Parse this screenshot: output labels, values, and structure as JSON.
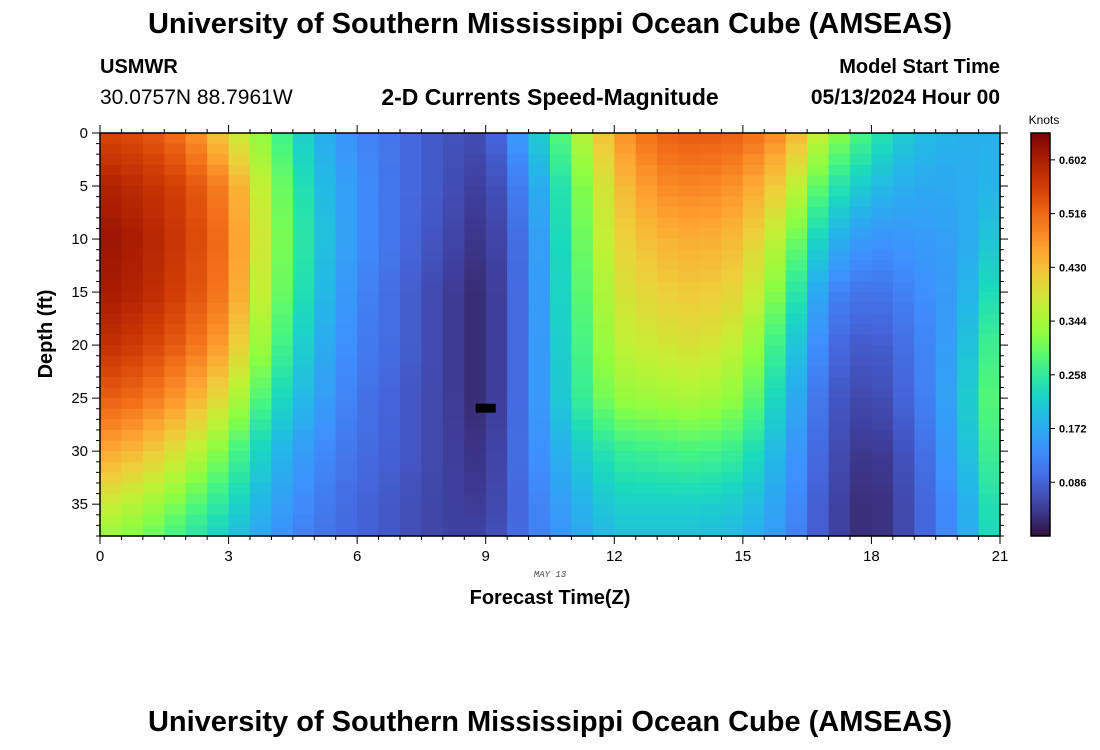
{
  "header": {
    "title": "University of Southern Mississippi Ocean Cube (AMSEAS)",
    "station": "USMWR",
    "coords": "30.0757N  88.7961W",
    "plot_title": "2-D Currents Speed-Magnitude",
    "model_start_label": "Model Start Time",
    "model_start_value": "05/13/2024 Hour 00"
  },
  "footer": {
    "title": "University of Southern Mississippi Ocean Cube (AMSEAS)"
  },
  "chart_data": {
    "type": "heatmap",
    "title": "2-D Currents Speed-Magnitude",
    "xlabel": "Forecast Time(Z)",
    "ylabel": "Depth (ft)",
    "date_label": "MAY 13",
    "xlim": [
      0,
      21
    ],
    "ylim": [
      0,
      38
    ],
    "x_ticks": [
      0,
      3,
      6,
      9,
      12,
      15,
      18,
      21
    ],
    "y_ticks": [
      0,
      5,
      10,
      15,
      20,
      25,
      30,
      35
    ],
    "colorbar": {
      "label": "Knots",
      "min": 0.0,
      "max": 0.645,
      "ticks": [
        "0.602",
        "0.516",
        "0.430",
        "0.344",
        "0.258",
        "0.172",
        "0.086"
      ]
    },
    "depth_rows": [
      0,
      5,
      10,
      15,
      20,
      25,
      30,
      35,
      38
    ],
    "series": [
      {
        "time": 0,
        "speeds": [
          0.55,
          0.6,
          0.62,
          0.61,
          0.58,
          0.53,
          0.46,
          0.38,
          0.34
        ]
      },
      {
        "time": 1,
        "speeds": [
          0.54,
          0.58,
          0.6,
          0.59,
          0.56,
          0.51,
          0.43,
          0.35,
          0.31
        ]
      },
      {
        "time": 2,
        "speeds": [
          0.5,
          0.55,
          0.56,
          0.55,
          0.52,
          0.46,
          0.38,
          0.3,
          0.26
        ]
      },
      {
        "time": 3,
        "speeds": [
          0.4,
          0.48,
          0.5,
          0.49,
          0.45,
          0.38,
          0.3,
          0.24,
          0.21
        ]
      },
      {
        "time": 4,
        "speeds": [
          0.3,
          0.33,
          0.34,
          0.33,
          0.3,
          0.25,
          0.2,
          0.17,
          0.15
        ]
      },
      {
        "time": 5,
        "speeds": [
          0.19,
          0.21,
          0.22,
          0.21,
          0.19,
          0.17,
          0.14,
          0.12,
          0.11
        ]
      },
      {
        "time": 6,
        "speeds": [
          0.13,
          0.14,
          0.14,
          0.13,
          0.12,
          0.11,
          0.1,
          0.09,
          0.09
        ]
      },
      {
        "time": 7,
        "speeds": [
          0.1,
          0.1,
          0.1,
          0.09,
          0.09,
          0.08,
          0.08,
          0.07,
          0.07
        ]
      },
      {
        "time": 8,
        "speeds": [
          0.07,
          0.07,
          0.06,
          0.05,
          0.05,
          0.05,
          0.05,
          0.05,
          0.05
        ]
      },
      {
        "time": 9,
        "speeds": [
          0.06,
          0.04,
          0.03,
          0.02,
          0.02,
          0.02,
          0.03,
          0.04,
          0.05
        ]
      },
      {
        "time": 10,
        "speeds": [
          0.18,
          0.14,
          0.12,
          0.12,
          0.12,
          0.12,
          0.12,
          0.11,
          0.11
        ]
      },
      {
        "time": 11,
        "speeds": [
          0.32,
          0.28,
          0.27,
          0.26,
          0.25,
          0.24,
          0.2,
          0.17,
          0.16
        ]
      },
      {
        "time": 12,
        "speeds": [
          0.46,
          0.42,
          0.4,
          0.38,
          0.36,
          0.33,
          0.26,
          0.22,
          0.2
        ]
      },
      {
        "time": 13,
        "speeds": [
          0.52,
          0.48,
          0.44,
          0.41,
          0.38,
          0.34,
          0.27,
          0.22,
          0.2
        ]
      },
      {
        "time": 14,
        "speeds": [
          0.53,
          0.49,
          0.45,
          0.42,
          0.39,
          0.35,
          0.28,
          0.22,
          0.2
        ]
      },
      {
        "time": 15,
        "speeds": [
          0.52,
          0.47,
          0.43,
          0.4,
          0.36,
          0.32,
          0.26,
          0.21,
          0.19
        ]
      },
      {
        "time": 16,
        "speeds": [
          0.47,
          0.4,
          0.34,
          0.29,
          0.24,
          0.2,
          0.17,
          0.15,
          0.14
        ]
      },
      {
        "time": 17,
        "speeds": [
          0.34,
          0.26,
          0.19,
          0.13,
          0.1,
          0.08,
          0.07,
          0.06,
          0.06
        ]
      },
      {
        "time": 18,
        "speeds": [
          0.26,
          0.2,
          0.14,
          0.1,
          0.07,
          0.05,
          0.03,
          0.02,
          0.02
        ]
      },
      {
        "time": 19,
        "speeds": [
          0.2,
          0.17,
          0.15,
          0.13,
          0.11,
          0.1,
          0.08,
          0.07,
          0.07
        ]
      },
      {
        "time": 20,
        "speeds": [
          0.18,
          0.17,
          0.16,
          0.16,
          0.17,
          0.18,
          0.17,
          0.15,
          0.15
        ]
      },
      {
        "time": 21,
        "speeds": [
          0.18,
          0.19,
          0.22,
          0.26,
          0.3,
          0.32,
          0.3,
          0.27,
          0.26
        ]
      }
    ],
    "marker": {
      "time": 9,
      "depth": 26
    }
  }
}
